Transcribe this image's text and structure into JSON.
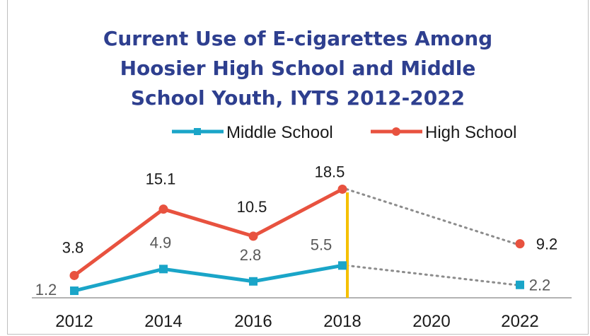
{
  "chart_data": {
    "type": "line",
    "title_lines": [
      "Current Use of E-cigarettes Among",
      "Hoosier High School and Middle",
      "School Youth, IYTS 2012-2022"
    ],
    "categories": [
      "2012",
      "2014",
      "2016",
      "2018",
      "2020",
      "2022"
    ],
    "series": [
      {
        "name": "Middle School",
        "color": "#1aa5c8",
        "marker": "square",
        "values": [
          1.2,
          4.9,
          2.8,
          5.5,
          null,
          2.2
        ],
        "labels": [
          "1.2",
          "4.9",
          "2.8",
          "5.5",
          "",
          "2.2"
        ]
      },
      {
        "name": "High School",
        "color": "#e8523f",
        "marker": "circle",
        "values": [
          3.8,
          15.1,
          10.5,
          18.5,
          null,
          9.2
        ],
        "labels": [
          "3.8",
          "15.1",
          "10.5",
          "18.5",
          "",
          "9.2"
        ]
      }
    ],
    "ylim": [
      0,
      20
    ],
    "legend_position": "top-right",
    "grid": false,
    "marker_line_color": "#f5c000",
    "title_color": "#2e3f8f",
    "dotted_color": "#8c8c8c"
  }
}
